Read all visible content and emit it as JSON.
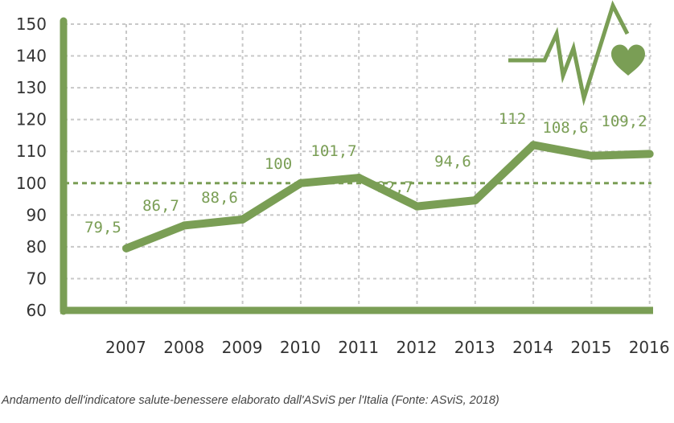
{
  "chart_data": {
    "type": "line",
    "title": "",
    "xlabel": "",
    "ylabel": "",
    "categories": [
      "2007",
      "2008",
      "2009",
      "2010",
      "2011",
      "2012",
      "2013",
      "2014",
      "2015",
      "2016"
    ],
    "values": [
      79.5,
      86.7,
      88.6,
      100,
      101.7,
      92.7,
      94.6,
      112,
      108.6,
      109.2
    ],
    "data_labels": [
      "79,5",
      "86,7",
      "88,6",
      "100",
      "101,7",
      "92,7",
      "94,6",
      "112",
      "108,6",
      "109,2"
    ],
    "y_ticks": [
      "60",
      "70",
      "80",
      "90",
      "100",
      "110",
      "120",
      "130",
      "140",
      "150"
    ],
    "ylim": [
      60,
      150
    ],
    "reference_line": 100,
    "grid": true,
    "legend": "none",
    "colors": {
      "line": "#7a9e55",
      "grid": "#c8c8c8",
      "axis": "#7a9e55",
      "reference": "#7a9e55"
    },
    "decoration": "heartbeat-heart-icon"
  },
  "caption": "Andamento dell'indicatore salute-benessere elaborato dall'ASviS per l'Italia (Fonte: ASviS, 2018)"
}
